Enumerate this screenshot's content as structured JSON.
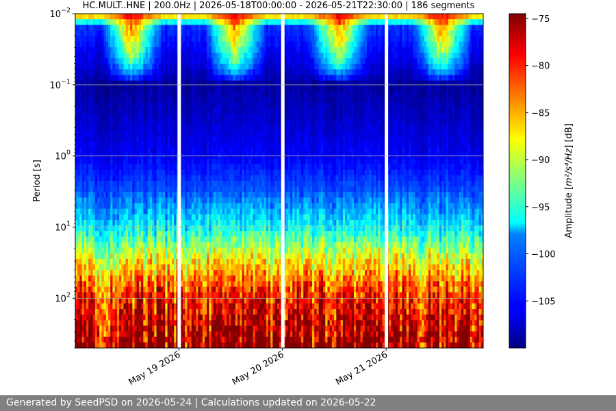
{
  "chart_data": {
    "type": "heatmap",
    "title": "HC.MULT..HNE | 200.0Hz | 2026-05-18T00:00:00 - 2026-05-21T22:30:00 | 186 segments",
    "ylabel": "Period [s]",
    "y_scale": "log",
    "y_inverted": true,
    "y_ticks": [
      0.01,
      0.1,
      1,
      10,
      100
    ],
    "y_tick_labels": [
      {
        "base": "10",
        "exp": "−2"
      },
      {
        "base": "10",
        "exp": "−1"
      },
      {
        "base": "10",
        "exp": "0"
      },
      {
        "base": "10",
        "exp": "1"
      },
      {
        "base": "10",
        "exp": "2"
      }
    ],
    "ylim": [
      0.01,
      500
    ],
    "x_start": "2026-05-18T00:00:00",
    "x_end": "2026-05-21T22:30:00",
    "x_ticks": [
      "2026-05-19",
      "2026-05-20",
      "2026-05-21"
    ],
    "x_tick_labels": [
      "May 19 2026",
      "May 20 2026",
      "May 21 2026"
    ],
    "data_gaps": [
      "2026-05-19",
      "2026-05-20",
      "2026-05-21"
    ],
    "segments": 186,
    "colormap": "jet",
    "colorbar": {
      "label_prefix": "Amplitude [",
      "label_unit": "m²/s⁴/Hz",
      "label_suffix": "] [dB]",
      "ticks": [
        -75,
        -80,
        -85,
        -90,
        -95,
        -100,
        -105
      ],
      "range": [
        -110,
        -74.5
      ]
    },
    "amplitude_profile_db": [
      {
        "period": 0.01,
        "value": -82
      },
      {
        "period": 0.015,
        "value": -104
      },
      {
        "period": 0.05,
        "value": -107
      },
      {
        "period": 0.1,
        "value": -109
      },
      {
        "period": 1,
        "value": -106
      },
      {
        "period": 3,
        "value": -103
      },
      {
        "period": 10,
        "value": -97
      },
      {
        "period": 30,
        "value": -88
      },
      {
        "period": 100,
        "value": -80
      },
      {
        "period": 500,
        "value": -75
      }
    ],
    "daytime_high_frequency_bursts_db": -78,
    "grid": true
  },
  "footer": {
    "text": "Generated by SeedPSD on 2026-05-24 | Calculations updated on 2026-05-22"
  }
}
